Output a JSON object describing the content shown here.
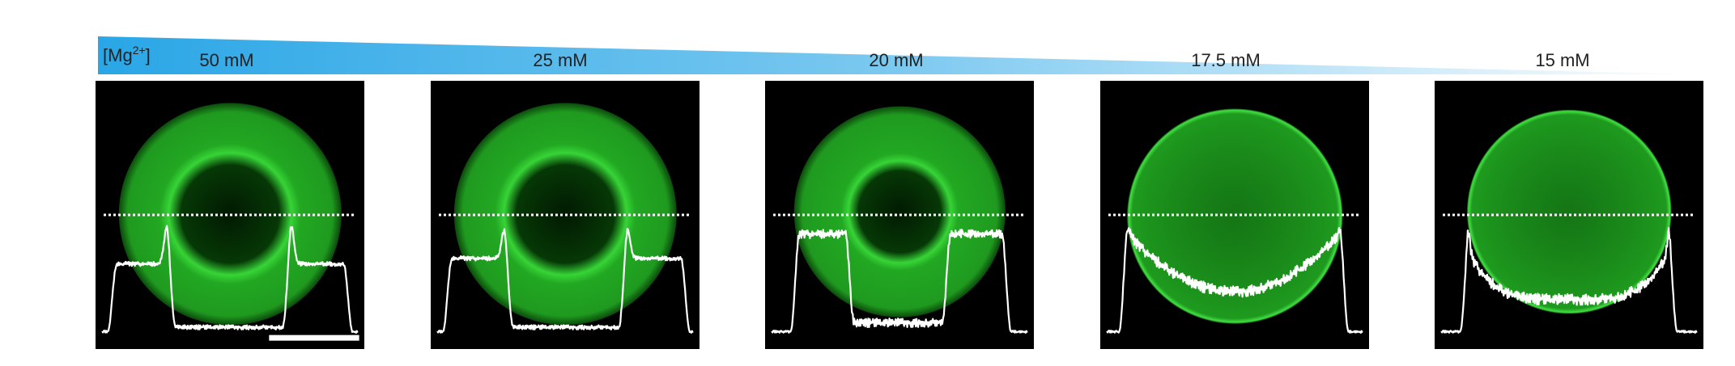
{
  "header": {
    "label_main": "[Mg",
    "label_sup": "2+",
    "label_end": "]"
  },
  "panels": [
    {
      "label": "50 mM"
    },
    {
      "label": "25 mM"
    },
    {
      "label": "20 mM"
    },
    {
      "label": "17.5 mM"
    },
    {
      "label": "15 mM"
    }
  ]
}
